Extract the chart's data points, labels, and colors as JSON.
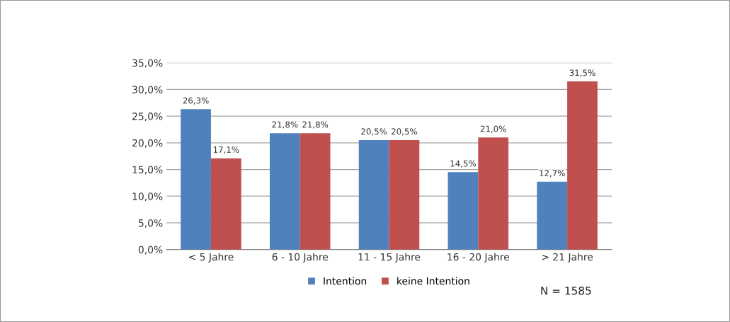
{
  "chart_data": {
    "type": "bar",
    "categories": [
      "< 5 Jahre",
      "6 - 10 Jahre",
      "11 - 15 Jahre",
      "16 - 20 Jahre",
      "> 21 Jahre"
    ],
    "series": [
      {
        "name": "Intention",
        "color": "#4f81bd",
        "values": [
          26.3,
          21.8,
          20.5,
          14.5,
          12.7
        ],
        "value_labels": [
          "26,3%",
          "21,8%",
          "20,5%",
          "14,5%",
          "12,7%"
        ]
      },
      {
        "name": "keine Intention",
        "color": "#c0504d",
        "values": [
          17.1,
          21.8,
          20.5,
          21.0,
          31.5
        ],
        "value_labels": [
          "17,1%",
          "21,8%",
          "20,5%",
          "21,0%",
          "31,5%"
        ]
      }
    ],
    "ylim": [
      0,
      35
    ],
    "yticks": [
      {
        "value": 0,
        "label": "0,0%"
      },
      {
        "value": 5,
        "label": "5,0%"
      },
      {
        "value": 10,
        "label": "10,0%"
      },
      {
        "value": 15,
        "label": "15,0%"
      },
      {
        "value": 20,
        "label": "20,0%"
      },
      {
        "value": 25,
        "label": "25,0%"
      },
      {
        "value": 30,
        "label": "30,0%"
      },
      {
        "value": 35,
        "label": "35,0%"
      }
    ],
    "grid": "y",
    "legend": "bottom",
    "annotations": [
      "N = 1585"
    ]
  }
}
